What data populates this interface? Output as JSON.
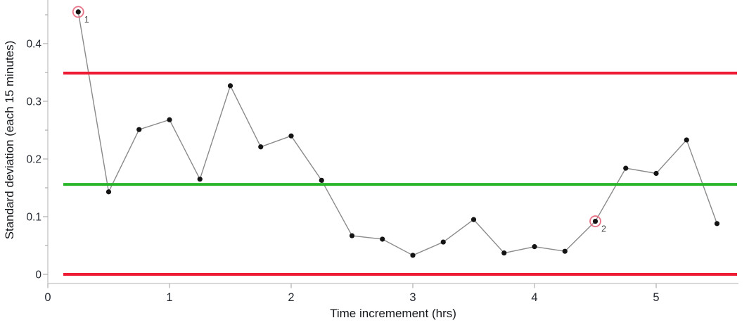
{
  "chart_data": {
    "type": "line",
    "xlabel": "Time incremement (hrs)",
    "ylabel": "Standard deviation (each 15 minutes)",
    "x": [
      0.25,
      0.5,
      0.75,
      1.0,
      1.25,
      1.5,
      1.75,
      2.0,
      2.25,
      2.5,
      2.75,
      3.0,
      3.25,
      3.5,
      3.75,
      4.0,
      4.25,
      4.5,
      4.75,
      5.0,
      5.25,
      5.5
    ],
    "values": [
      0.455,
      0.143,
      0.251,
      0.268,
      0.165,
      0.327,
      0.221,
      0.24,
      0.163,
      0.067,
      0.061,
      0.033,
      0.056,
      0.095,
      0.037,
      0.048,
      0.04,
      0.092,
      0.184,
      0.175,
      0.233,
      0.088
    ],
    "xlim": [
      0,
      5.68
    ],
    "ylim": [
      0,
      0.475
    ],
    "x_ticks": [
      {
        "v": 0,
        "label": "0"
      },
      {
        "v": 1,
        "label": "1"
      },
      {
        "v": 2,
        "label": "2"
      },
      {
        "v": 3,
        "label": "3"
      },
      {
        "v": 4,
        "label": "4"
      },
      {
        "v": 5,
        "label": "5"
      }
    ],
    "y_ticks": [
      {
        "v": 0,
        "label": "0"
      },
      {
        "v": 0.1,
        "label": "0.1"
      },
      {
        "v": 0.2,
        "label": "0.2"
      },
      {
        "v": 0.3,
        "label": "0.3"
      },
      {
        "v": 0.4,
        "label": "0.4"
      }
    ],
    "y_minor_ticks": [
      0.05,
      0.15,
      0.25,
      0.35,
      0.45
    ],
    "grid": false,
    "legend": "none",
    "control_limits": {
      "ucl": 0.349,
      "center_line": 0.156,
      "lcl": 0
    },
    "annotations": [
      {
        "x": 0.25,
        "y": 0.455,
        "label": "1"
      },
      {
        "x": 4.5,
        "y": 0.092,
        "label": "2"
      }
    ],
    "colors": {
      "limit_line_red": "#ed1b34",
      "center_line_green": "#27b427",
      "connector_gray": "#8a8a8a",
      "marker_black": "#141414",
      "annotation_ring_pink": "#e87286",
      "annotation_text": "#4a4a4a",
      "axis_gray": "#c2c2c2",
      "tick_gray": "#aeaeae",
      "tick_label": "#262b33"
    }
  }
}
